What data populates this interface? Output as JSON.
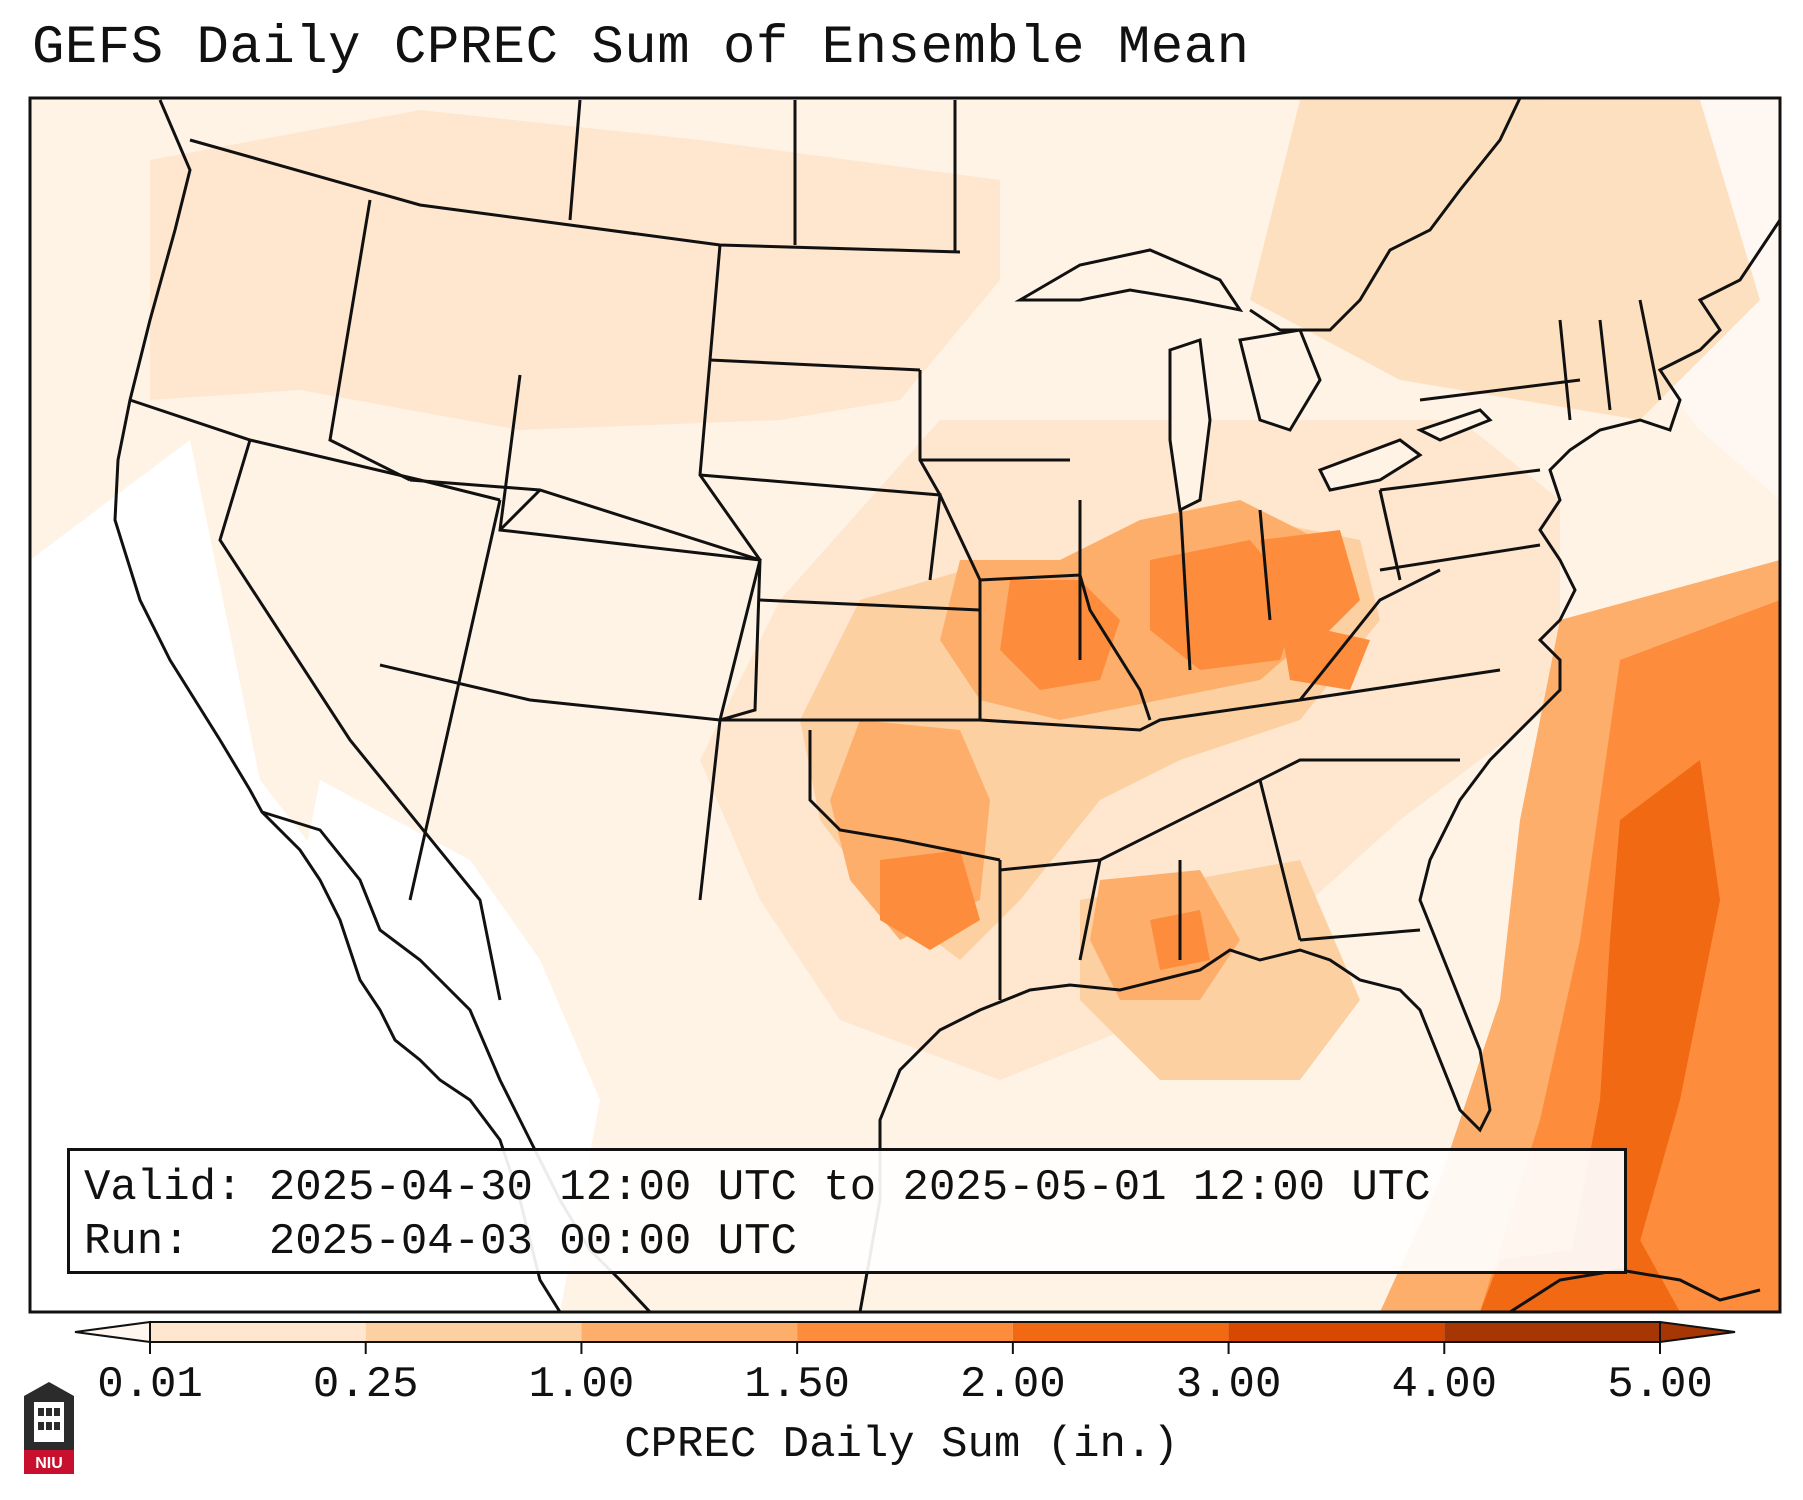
{
  "title": "GEFS Daily CPREC Sum of Ensemble Mean",
  "info": {
    "valid_label": "Valid:",
    "valid_value": "2025-04-30 12:00 UTC to 2025-05-01 12:00 UTC",
    "run_label": "Run:",
    "run_value": "2025-04-03 00:00 UTC"
  },
  "colorbar": {
    "label": "CPREC Daily Sum (in.)",
    "ticks": [
      "0.01",
      "0.25",
      "1.00",
      "1.50",
      "2.00",
      "3.00",
      "4.00",
      "5.00"
    ],
    "colors": [
      "#fff7ef",
      "#fee6cf",
      "#fdd0a2",
      "#fdae6b",
      "#fd8d3c",
      "#f16913",
      "#d94801",
      "#a63603"
    ],
    "extend": "both"
  },
  "map": {
    "projection": "Lambert conformal (CONUS)",
    "region": "Contiguous United States",
    "heaviest_precip_regions": [
      "Missouri / Illinois / Indiana / Ohio Valley",
      "Oklahoma / North Texas",
      "Gulf Coast",
      "Western Atlantic off the Southeast coast"
    ]
  },
  "logo": {
    "text": "NIU"
  }
}
